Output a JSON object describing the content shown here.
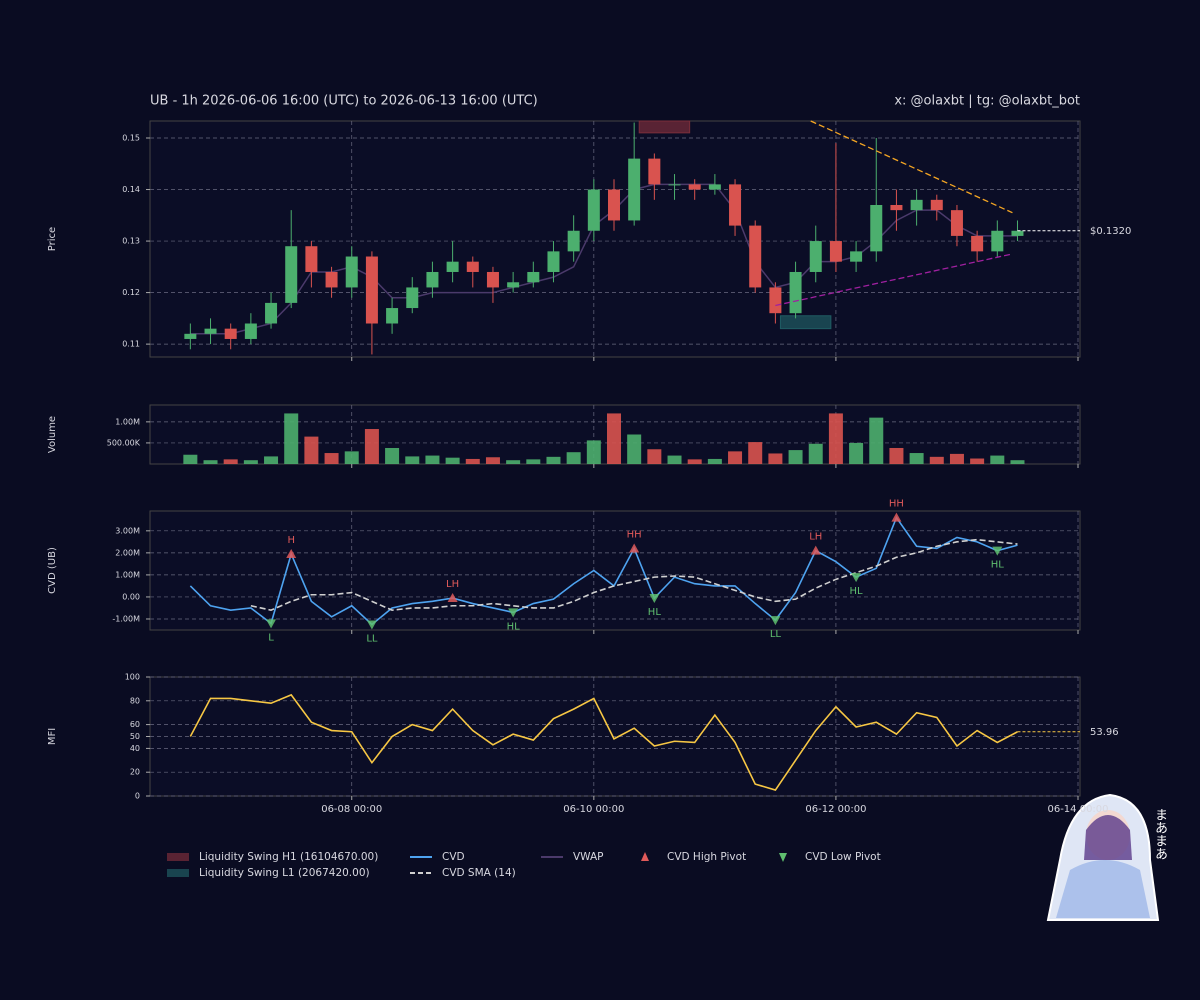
{
  "header": {
    "title": "UB - 1h 2026-06-06 16:00 (UTC) to 2026-06-13 16:00 (UTC)",
    "credit": "x: @olaxbt | tg: @olaxbt_bot"
  },
  "sticker_text": "まあまあ",
  "chart_data": [
    {
      "type": "candlestick",
      "ylabel": "Price",
      "up_color": "#4caf6e",
      "down_color": "#d9534f",
      "grid": true,
      "x": [
        "06-06 16:00",
        "06-06 20:00",
        "06-07 00:00",
        "06-07 04:00",
        "06-07 08:00",
        "06-07 12:00",
        "06-07 16:00",
        "06-07 20:00",
        "06-08 00:00",
        "06-08 04:00",
        "06-08 08:00",
        "06-08 12:00",
        "06-08 16:00",
        "06-08 20:00",
        "06-09 00:00",
        "06-09 04:00",
        "06-09 08:00",
        "06-09 12:00",
        "06-09 16:00",
        "06-09 20:00",
        "06-10 00:00",
        "06-10 04:00",
        "06-10 08:00",
        "06-10 12:00",
        "06-10 16:00",
        "06-10 20:00",
        "06-11 00:00",
        "06-11 04:00",
        "06-11 08:00",
        "06-11 12:00",
        "06-11 16:00",
        "06-11 20:00",
        "06-12 00:00",
        "06-12 04:00",
        "06-12 08:00",
        "06-12 12:00",
        "06-12 16:00",
        "06-12 20:00",
        "06-13 00:00",
        "06-13 04:00",
        "06-13 08:00",
        "06-13 12:00"
      ],
      "open": [
        0.111,
        0.112,
        0.113,
        0.111,
        0.114,
        0.118,
        0.129,
        0.124,
        0.121,
        0.127,
        0.114,
        0.117,
        0.121,
        0.124,
        0.126,
        0.124,
        0.121,
        0.122,
        0.124,
        0.128,
        0.132,
        0.14,
        0.134,
        0.146,
        0.141,
        0.141,
        0.14,
        0.141,
        0.133,
        0.121,
        0.116,
        0.124,
        0.13,
        0.126,
        0.128,
        0.137,
        0.136,
        0.138,
        0.136,
        0.131,
        0.128,
        0.131
      ],
      "high": [
        0.114,
        0.115,
        0.114,
        0.116,
        0.12,
        0.136,
        0.13,
        0.125,
        0.129,
        0.128,
        0.119,
        0.123,
        0.126,
        0.13,
        0.127,
        0.125,
        0.124,
        0.126,
        0.13,
        0.135,
        0.142,
        0.142,
        0.153,
        0.147,
        0.143,
        0.142,
        0.143,
        0.142,
        0.134,
        0.122,
        0.126,
        0.133,
        0.149,
        0.13,
        0.15,
        0.14,
        0.14,
        0.139,
        0.137,
        0.132,
        0.134,
        0.134
      ],
      "low": [
        0.109,
        0.11,
        0.109,
        0.11,
        0.113,
        0.117,
        0.121,
        0.119,
        0.119,
        0.108,
        0.112,
        0.116,
        0.119,
        0.122,
        0.121,
        0.118,
        0.12,
        0.121,
        0.122,
        0.126,
        0.13,
        0.132,
        0.133,
        0.138,
        0.138,
        0.138,
        0.139,
        0.131,
        0.12,
        0.114,
        0.115,
        0.122,
        0.124,
        0.124,
        0.126,
        0.132,
        0.133,
        0.134,
        0.129,
        0.126,
        0.127,
        0.13
      ],
      "close": [
        0.112,
        0.113,
        0.111,
        0.114,
        0.118,
        0.129,
        0.124,
        0.121,
        0.127,
        0.114,
        0.117,
        0.121,
        0.124,
        0.126,
        0.124,
        0.121,
        0.122,
        0.124,
        0.128,
        0.132,
        0.14,
        0.134,
        0.146,
        0.141,
        0.141,
        0.14,
        0.141,
        0.133,
        0.121,
        0.116,
        0.124,
        0.13,
        0.126,
        0.128,
        0.137,
        0.136,
        0.138,
        0.136,
        0.131,
        0.128,
        0.132,
        0.132
      ],
      "series": [
        {
          "name": "VWAP",
          "color": "#4b3a6b",
          "values": [
            0.112,
            0.112,
            0.112,
            0.113,
            0.114,
            0.118,
            0.124,
            0.124,
            0.125,
            0.123,
            0.119,
            0.119,
            0.12,
            0.12,
            0.12,
            0.12,
            0.121,
            0.122,
            0.123,
            0.125,
            0.133,
            0.136,
            0.14,
            0.141,
            0.141,
            0.141,
            0.141,
            0.136,
            0.126,
            0.121,
            0.122,
            0.126,
            0.126,
            0.127,
            0.13,
            0.134,
            0.136,
            0.136,
            0.133,
            0.131,
            0.131,
            0.131
          ]
        }
      ],
      "zones": [
        {
          "name": "Liquidity Swing H1 (16104670.00)",
          "color": "#7a2e3a",
          "x": [
            "06-10 09:00",
            "06-10 19:00"
          ],
          "y": [
            0.151,
            0.1533
          ]
        },
        {
          "name": "Liquidity Swing L1 (2067420.00)",
          "color": "#1f5c63",
          "x": [
            "06-11 13:00",
            "06-11 23:00"
          ],
          "y": [
            0.113,
            0.1155
          ]
        }
      ],
      "trendlines": [
        {
          "color": "#f5a623",
          "x": [
            "06-11 19:00",
            "06-13 11:00"
          ],
          "y": [
            0.1533,
            0.1355
          ]
        },
        {
          "color": "#a020a0",
          "x": [
            "06-11 12:00",
            "06-13 11:00"
          ],
          "y": [
            0.1175,
            0.1275
          ]
        }
      ],
      "last_label": "$0.1320",
      "ylim": [
        0.1075,
        0.1533
      ],
      "yticks": [
        0.11,
        0.12,
        0.13,
        0.14,
        0.15
      ]
    },
    {
      "type": "volume",
      "ylabel": "Volume",
      "grid": true,
      "values": [
        220000,
        90000,
        110000,
        90000,
        180000,
        1200000,
        650000,
        260000,
        300000,
        830000,
        380000,
        180000,
        200000,
        150000,
        120000,
        160000,
        90000,
        110000,
        170000,
        280000,
        560000,
        1200000,
        700000,
        350000,
        200000,
        110000,
        120000,
        300000,
        520000,
        250000,
        330000,
        480000,
        1200000,
        500000,
        1100000,
        380000,
        260000,
        170000,
        240000,
        130000,
        200000,
        90000
      ],
      "ylim": [
        0,
        1400000
      ],
      "yticks": [
        {
          "value": 500000,
          "label": "500.00K"
        },
        {
          "value": 1000000,
          "label": "1.00M"
        }
      ]
    },
    {
      "type": "line",
      "ylabel": "CVD (UB)",
      "grid": true,
      "series": [
        {
          "name": "CVD",
          "color": "#4ea3f0",
          "values": [
            500000,
            -400000,
            -600000,
            -500000,
            -1200000,
            1950000,
            -200000,
            -900000,
            -400000,
            -1250000,
            -500000,
            -300000,
            -200000,
            -50000,
            -300000,
            -500000,
            -700000,
            -300000,
            -100000,
            600000,
            1200000,
            500000,
            2200000,
            -50000,
            900000,
            600000,
            500000,
            500000,
            -300000,
            -1050000,
            200000,
            2100000,
            1600000,
            900000,
            1300000,
            3600000,
            2300000,
            2200000,
            2700000,
            2500000,
            2100000,
            2350000
          ]
        },
        {
          "name": "CVD SMA (14)",
          "color": "#d0d0d0",
          "dashed": true,
          "values": [
            null,
            null,
            null,
            -400000,
            -600000,
            -200000,
            100000,
            100000,
            200000,
            -200000,
            -600000,
            -500000,
            -500000,
            -400000,
            -400000,
            -300000,
            -400000,
            -500000,
            -500000,
            -200000,
            200000,
            500000,
            700000,
            900000,
            950000,
            900000,
            600000,
            300000,
            0,
            -200000,
            -100000,
            400000,
            800000,
            1100000,
            1400000,
            1800000,
            2000000,
            2300000,
            2500000,
            2600000,
            2500000,
            2400000
          ]
        },
        {
          "name": "CVD High Pivot",
          "color": "#e05a5a",
          "marker": "up",
          "x": [
            "06-07 12:00",
            "06-08 20:00",
            "06-10 08:00",
            "06-11 20:00",
            "06-12 12:00"
          ],
          "values": [
            1950000,
            -50000,
            2200000,
            2100000,
            3600000
          ],
          "labels": [
            "H",
            "LH",
            "HH",
            "LH",
            "HH"
          ]
        },
        {
          "name": "CVD Low Pivot",
          "color": "#5fbf6f",
          "marker": "down",
          "x": [
            "06-07 08:00",
            "06-08 04:00",
            "06-09 08:00",
            "06-10 12:00",
            "06-11 12:00",
            "06-12 04:00",
            "06-13 08:00"
          ],
          "values": [
            -1200000,
            -1250000,
            -700000,
            -50000,
            -1050000,
            900000,
            2100000
          ],
          "labels": [
            "L",
            "LL",
            "HL",
            "HL",
            "LL",
            "HL",
            "HL"
          ]
        }
      ],
      "ylim": [
        -1500000,
        3900000
      ],
      "yticks": [
        {
          "value": -1000000,
          "label": "-1.00M"
        },
        {
          "value": 0,
          "label": "0.00"
        },
        {
          "value": 1000000,
          "label": "1.00M"
        },
        {
          "value": 2000000,
          "label": "2.00M"
        },
        {
          "value": 3000000,
          "label": "3.00M"
        }
      ]
    },
    {
      "type": "line",
      "ylabel": "MFI",
      "grid": true,
      "series": [
        {
          "color": "#f7c744",
          "values": [
            50,
            82,
            82,
            80,
            78,
            85,
            62,
            55,
            54,
            28,
            50,
            60,
            55,
            73,
            55,
            43,
            52,
            47,
            65,
            73,
            82,
            48,
            57,
            42,
            46,
            45,
            68,
            45,
            10,
            5,
            30,
            55,
            75,
            58,
            62,
            52,
            70,
            66,
            42,
            55,
            45,
            53.96
          ]
        }
      ],
      "ylim": [
        0,
        100
      ],
      "yticks": [
        0,
        20,
        40,
        50,
        60,
        80,
        100
      ],
      "xlim": [
        "06-06 08:00",
        "06-14 00:00"
      ],
      "xticks": [
        "06-08 00:00",
        "06-10 00:00",
        "06-12 00:00",
        "06-14 00:00"
      ]
    }
  ]
}
